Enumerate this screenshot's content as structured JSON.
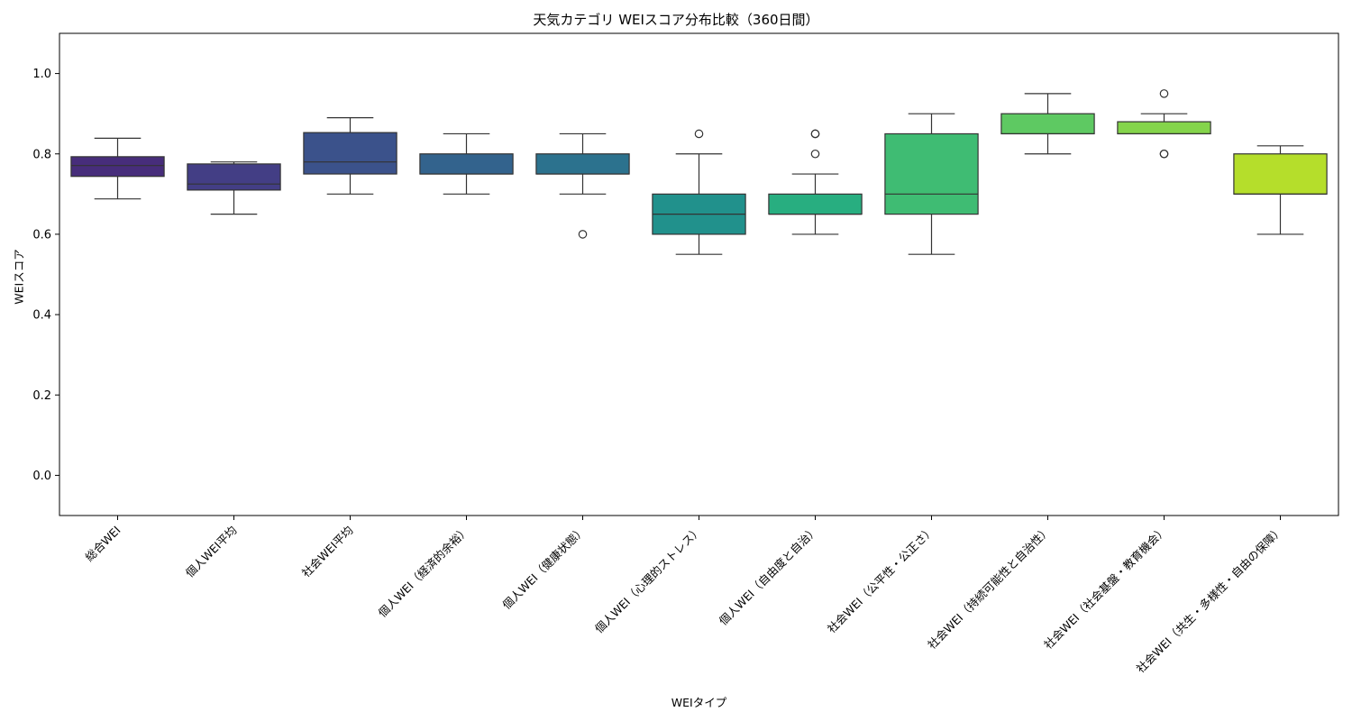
{
  "chart_data": {
    "type": "box",
    "title": "天気カテゴリ WEIスコア分布比較（360日間）",
    "xlabel": "WEIタイプ",
    "ylabel": "WEIスコア",
    "ylim": [
      -0.1,
      1.1
    ],
    "yticks": [
      "0.0",
      "0.2",
      "0.4",
      "0.6",
      "0.8",
      "1.0"
    ],
    "grid": false,
    "colormap": "viridis",
    "categories": [
      "総合WEI",
      "個人WEI平均",
      "社会WEI平均",
      "個人WEI（経済的余裕）",
      "個人WEI（健康状態）",
      "個人WEI（心理的ストレス）",
      "個人WEI（自由度と自治）",
      "社会WEI（公平性・公正さ）",
      "社会WEI（持続可能性と自治性）",
      "社会WEI（社会基盤・教育機会）",
      "社会WEI（共生・多様性・自由の保障）"
    ],
    "colors": [
      "#472d7b",
      "#433e85",
      "#3b528b",
      "#33638d",
      "#2c728e",
      "#21918c",
      "#28ae80",
      "#3fbc73",
      "#5ec962",
      "#84d44b",
      "#b5de2b"
    ],
    "boxes": [
      {
        "whislo": 0.688,
        "q1": 0.744,
        "med": 0.771,
        "q3": 0.793,
        "whishi": 0.839,
        "fliers": []
      },
      {
        "whislo": 0.65,
        "q1": 0.71,
        "med": 0.725,
        "q3": 0.775,
        "whishi": 0.78,
        "fliers": []
      },
      {
        "whislo": 0.7,
        "q1": 0.75,
        "med": 0.78,
        "q3": 0.853,
        "whishi": 0.89,
        "fliers": []
      },
      {
        "whislo": 0.7,
        "q1": 0.75,
        "med": 0.75,
        "q3": 0.8,
        "whishi": 0.85,
        "fliers": []
      },
      {
        "whislo": 0.7,
        "q1": 0.75,
        "med": 0.75,
        "q3": 0.8,
        "whishi": 0.85,
        "fliers": [
          0.6
        ]
      },
      {
        "whislo": 0.55,
        "q1": 0.6,
        "med": 0.65,
        "q3": 0.7,
        "whishi": 0.8,
        "fliers": [
          0.85
        ]
      },
      {
        "whislo": 0.6,
        "q1": 0.65,
        "med": 0.65,
        "q3": 0.7,
        "whishi": 0.75,
        "fliers": [
          0.8,
          0.85,
          0.85
        ]
      },
      {
        "whislo": 0.55,
        "q1": 0.65,
        "med": 0.7,
        "q3": 0.85,
        "whishi": 0.9,
        "fliers": []
      },
      {
        "whislo": 0.8,
        "q1": 0.85,
        "med": 0.85,
        "q3": 0.9,
        "whishi": 0.95,
        "fliers": []
      },
      {
        "whislo": 0.85,
        "q1": 0.85,
        "med": 0.85,
        "q3": 0.88,
        "whishi": 0.9,
        "fliers": [
          0.8,
          0.8,
          0.95
        ]
      },
      {
        "whislo": 0.6,
        "q1": 0.7,
        "med": 0.7,
        "q3": 0.8,
        "whishi": 0.82,
        "fliers": []
      }
    ]
  }
}
